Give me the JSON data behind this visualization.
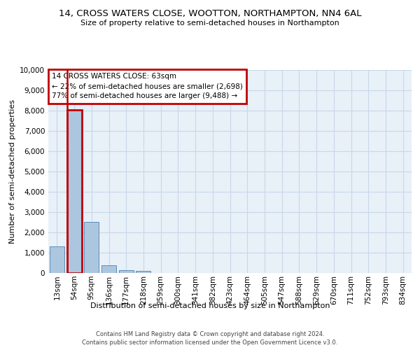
{
  "title": "14, CROSS WATERS CLOSE, WOOTTON, NORTHAMPTON, NN4 6AL",
  "subtitle": "Size of property relative to semi-detached houses in Northampton",
  "xlabel_bottom": "Distribution of semi-detached houses by size in Northampton",
  "ylabel": "Number of semi-detached properties",
  "footer1": "Contains HM Land Registry data © Crown copyright and database right 2024.",
  "footer2": "Contains public sector information licensed under the Open Government Licence v3.0.",
  "categories": [
    "13sqm",
    "54sqm",
    "95sqm",
    "136sqm",
    "177sqm",
    "218sqm",
    "259sqm",
    "300sqm",
    "341sqm",
    "382sqm",
    "423sqm",
    "464sqm",
    "505sqm",
    "547sqm",
    "588sqm",
    "629sqm",
    "670sqm",
    "711sqm",
    "752sqm",
    "793sqm",
    "834sqm"
  ],
  "values": [
    1320,
    8020,
    2520,
    390,
    145,
    100,
    0,
    0,
    0,
    0,
    0,
    0,
    0,
    0,
    0,
    0,
    0,
    0,
    0,
    0,
    0
  ],
  "bar_color": "#adc6df",
  "bar_edge_color": "#5b8db8",
  "highlight_color": "#c00000",
  "ylim": [
    0,
    10000
  ],
  "yticks": [
    0,
    1000,
    2000,
    3000,
    4000,
    5000,
    6000,
    7000,
    8000,
    9000,
    10000
  ],
  "annotation_title": "14 CROSS WATERS CLOSE: 63sqm",
  "annotation_line1": "← 22% of semi-detached houses are smaller (2,698)",
  "annotation_line2": "77% of semi-detached houses are larger (9,488) →",
  "annotation_box_color": "#c00000",
  "grid_color": "#c8d8e8",
  "bg_color": "#e8f0f8",
  "property_size_index": 1,
  "title_fontsize": 9.5,
  "subtitle_fontsize": 8,
  "ylabel_fontsize": 8,
  "tick_fontsize": 7.5,
  "annot_fontsize": 7.5,
  "footer_fontsize": 6
}
